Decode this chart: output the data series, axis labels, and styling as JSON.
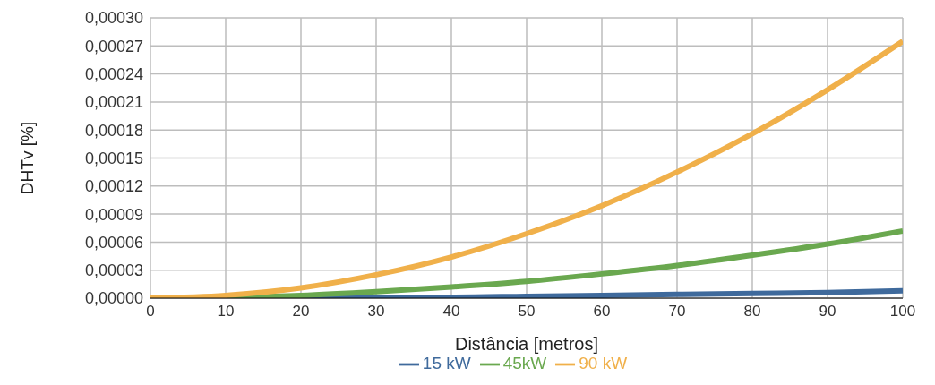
{
  "chart_data": {
    "type": "line",
    "xlabel": "Distância [metros]",
    "ylabel": "DHTv [%]",
    "x": [
      0,
      10,
      20,
      30,
      40,
      50,
      60,
      70,
      80,
      90,
      100
    ],
    "series": [
      {
        "name": "15 kW",
        "color": "#3f6a9c",
        "values": [
          0,
          0,
          0,
          1e-06,
          1e-06,
          2e-06,
          3e-06,
          4e-06,
          5e-06,
          6e-06,
          8e-06
        ]
      },
      {
        "name": "45kW",
        "color": "#6aa84f",
        "values": [
          0,
          1e-06,
          3e-06,
          7e-06,
          1.2e-05,
          1.8e-05,
          2.6e-05,
          3.5e-05,
          4.6e-05,
          5.8e-05,
          7.2e-05
        ]
      },
      {
        "name": "90 kW",
        "color": "#f0b04a",
        "values": [
          0,
          3e-06,
          1.1e-05,
          2.5e-05,
          4.4e-05,
          6.9e-05,
          9.9e-05,
          0.000135,
          0.000176,
          0.000223,
          0.000275
        ]
      }
    ],
    "xlim": [
      0,
      100
    ],
    "xticks": [
      0,
      10,
      20,
      30,
      40,
      50,
      60,
      70,
      80,
      90,
      100
    ],
    "ylim": [
      0,
      0.0003
    ],
    "yticks": [
      {
        "value": 0,
        "label": "0,00000"
      },
      {
        "value": 3e-05,
        "label": "0,00003"
      },
      {
        "value": 6e-05,
        "label": "0,00006"
      },
      {
        "value": 9e-05,
        "label": "0,00009"
      },
      {
        "value": 0.00012,
        "label": "0,00012"
      },
      {
        "value": 0.00015,
        "label": "0,00015"
      },
      {
        "value": 0.00018,
        "label": "0,00018"
      },
      {
        "value": 0.00021,
        "label": "0,00021"
      },
      {
        "value": 0.00024,
        "label": "0,00024"
      },
      {
        "value": 0.00027,
        "label": "0,00027"
      },
      {
        "value": 0.0003,
        "label": "0,00030"
      }
    ],
    "grid": true,
    "legend": "bottom",
    "marker": "none",
    "line_style": "solid"
  }
}
